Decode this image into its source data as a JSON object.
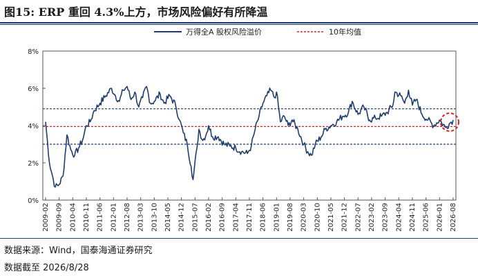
{
  "figure": {
    "title": "图15: ERP 重回 4.3%上方，市场风险偏好有所降温",
    "source": "数据来源：Wind，国泰海通证券研究",
    "date_note": "数据截至 2026/8/28"
  },
  "colors": {
    "series": "#1f3c6e",
    "mean_line": "#d62728",
    "band_line": "#1f3c6e",
    "highlight": "#e31a1c"
  },
  "chart_data": {
    "type": "line",
    "x_tick_labels": [
      "2009-02",
      "2009-09",
      "2010-04",
      "2010-11",
      "2011-06",
      "2012-01",
      "2012-08",
      "2013-03",
      "2013-10",
      "2014-05",
      "2014-12",
      "2015-07",
      "2016-02",
      "2016-09",
      "2017-04",
      "2017-11",
      "2018-06",
      "2019-01",
      "2019-08",
      "2020-03",
      "2020-10",
      "2021-05",
      "2021-12",
      "2022-07",
      "2023-02",
      "2023-09",
      "2024-04",
      "2024-11",
      "2025-06",
      "2026-01",
      "2026-08"
    ],
    "y_tick_labels": [
      "0%",
      "2%",
      "4%",
      "6%",
      "8%"
    ],
    "ylim": [
      0,
      8
    ],
    "grid": false,
    "legend_position": "top",
    "series": [
      {
        "name": "万得全A 股权风险溢价",
        "x": [
          "2009-02",
          "2009-04",
          "2009-06",
          "2009-07",
          "2009-09",
          "2009-11",
          "2010-01",
          "2010-03",
          "2010-05",
          "2010-07",
          "2010-09",
          "2010-11",
          "2011-01",
          "2011-03",
          "2011-06",
          "2011-09",
          "2011-12",
          "2012-02",
          "2012-04",
          "2012-06",
          "2012-08",
          "2012-10",
          "2012-12",
          "2013-02",
          "2013-04",
          "2013-06",
          "2013-08",
          "2013-10",
          "2014-01",
          "2014-03",
          "2014-06",
          "2014-09",
          "2014-11",
          "2015-01",
          "2015-03",
          "2015-05",
          "2015-06",
          "2015-08",
          "2015-09",
          "2015-11",
          "2016-01",
          "2016-02",
          "2016-04",
          "2016-07",
          "2016-10",
          "2017-01",
          "2017-04",
          "2017-07",
          "2017-10",
          "2017-12",
          "2018-02",
          "2018-04",
          "2018-06",
          "2018-08",
          "2018-10",
          "2018-12",
          "2019-01",
          "2019-03",
          "2019-05",
          "2019-07",
          "2019-09",
          "2019-12",
          "2020-03",
          "2020-05",
          "2020-07",
          "2020-09",
          "2020-12",
          "2021-02",
          "2021-05",
          "2021-08",
          "2021-11",
          "2022-02",
          "2022-04",
          "2022-07",
          "2022-10",
          "2023-01",
          "2023-04",
          "2023-07",
          "2023-10",
          "2024-01",
          "2024-02",
          "2024-05",
          "2024-07",
          "2024-09",
          "2024-11",
          "2025-01",
          "2025-04",
          "2025-07",
          "2025-10",
          "2026-01",
          "2026-04",
          "2026-06",
          "2026-08"
        ],
        "values": [
          4.2,
          2.0,
          1.1,
          0.7,
          0.85,
          1.3,
          3.5,
          2.7,
          2.4,
          2.8,
          3.2,
          4.0,
          4.2,
          4.8,
          5.2,
          5.6,
          6.0,
          5.6,
          5.3,
          5.9,
          6.1,
          5.4,
          5.8,
          5.0,
          5.5,
          6.1,
          5.2,
          5.3,
          5.7,
          5.2,
          5.6,
          5.1,
          4.3,
          3.6,
          3.0,
          1.8,
          1.1,
          2.8,
          3.8,
          3.2,
          3.6,
          4.0,
          3.4,
          3.4,
          3.0,
          2.9,
          2.8,
          2.6,
          2.5,
          2.9,
          3.8,
          4.5,
          5.2,
          5.6,
          5.9,
          5.5,
          5.8,
          4.2,
          4.5,
          4.0,
          4.3,
          3.8,
          3.0,
          2.6,
          2.4,
          3.0,
          3.4,
          3.8,
          4.0,
          4.2,
          4.5,
          4.7,
          5.3,
          4.6,
          5.0,
          4.3,
          4.4,
          4.5,
          4.7,
          5.1,
          5.8,
          5.6,
          5.2,
          5.9,
          5.1,
          5.4,
          4.6,
          4.3,
          4.0,
          4.3,
          3.9,
          4.1,
          4.3
        ]
      },
      {
        "name": "10年均值",
        "values": [
          3.95
        ]
      }
    ],
    "band_lines": [
      4.9,
      3.0
    ]
  }
}
